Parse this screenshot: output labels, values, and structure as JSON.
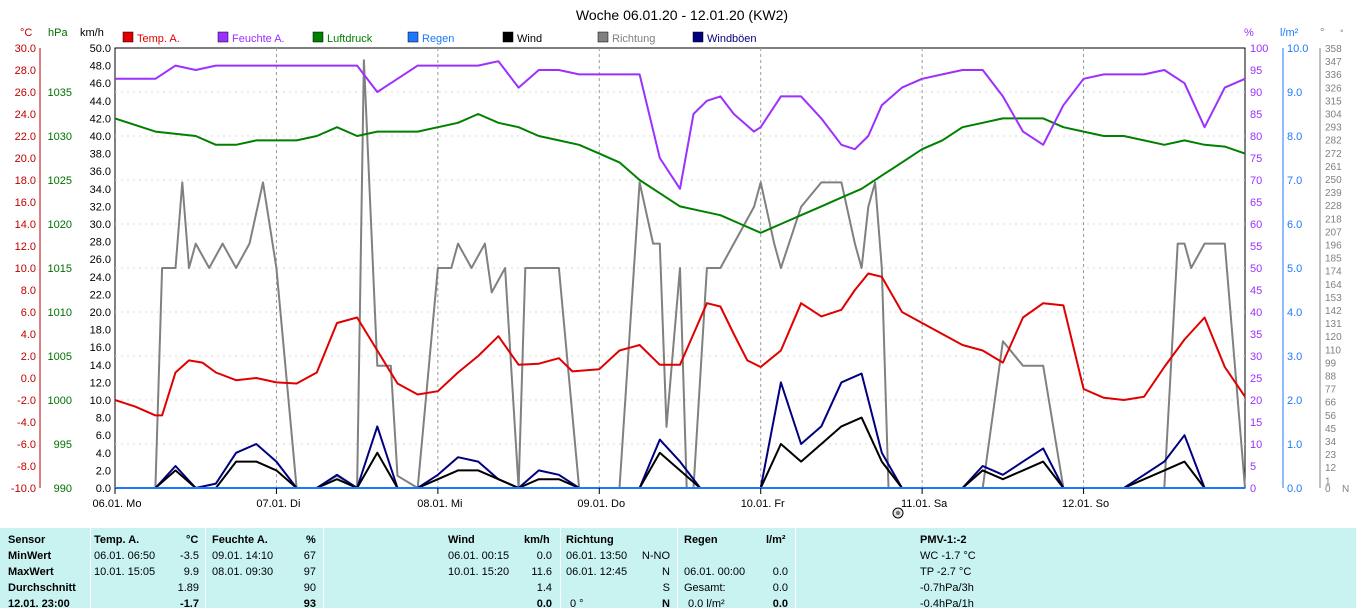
{
  "title": "Woche 06.01.20 - 12.01.20 (KW2)",
  "axes": {
    "temp_unit": "°C",
    "hpa_unit": "hPa",
    "kmh_unit": "km/h",
    "pct_unit": "%",
    "rain_unit": "l/m²",
    "dir_unit": "°",
    "temp_ticks": [
      "30.0",
      "28.0",
      "26.0",
      "24.0",
      "22.0",
      "20.0",
      "18.0",
      "16.0",
      "14.0",
      "12.0",
      "10.0",
      "8.0",
      "6.0",
      "4.0",
      "2.0",
      "0.0",
      "-2.0",
      "-4.0",
      "-6.0",
      "-8.0",
      "-10.0"
    ],
    "hpa_ticks": [
      "1035",
      "1030",
      "1025",
      "1020",
      "1015",
      "1010",
      "1005",
      "1000",
      "995",
      "990"
    ],
    "kmh_ticks": [
      "50.0",
      "48.0",
      "46.0",
      "44.0",
      "42.0",
      "40.0",
      "38.0",
      "36.0",
      "34.0",
      "32.0",
      "30.0",
      "28.0",
      "26.0",
      "24.0",
      "22.0",
      "20.0",
      "18.0",
      "16.0",
      "14.0",
      "12.0",
      "10.0",
      "8.0",
      "6.0",
      "4.0",
      "2.0",
      "0.0"
    ],
    "pct_ticks": [
      "100",
      "95",
      "90",
      "85",
      "80",
      "75",
      "70",
      "65",
      "60",
      "55",
      "50",
      "45",
      "40",
      "35",
      "30",
      "25",
      "20",
      "15",
      "10",
      "5",
      "0"
    ],
    "rain_ticks": [
      "10.0",
      "9.0",
      "8.0",
      "7.0",
      "6.0",
      "5.0",
      "4.0",
      "3.0",
      "2.0",
      "1.0",
      "0.0"
    ],
    "dir_ticks": [
      "358",
      "347",
      "336",
      "326",
      "315",
      "304",
      "293",
      "282",
      "272",
      "261",
      "250",
      "239",
      "228",
      "218",
      "207",
      "196",
      "185",
      "174",
      "164",
      "153",
      "142",
      "131",
      "120",
      "110",
      "99",
      "88",
      "77",
      "66",
      "56",
      "45",
      "34",
      "23",
      "12",
      "1"
    ],
    "dir_bottom": [
      "0",
      "N"
    ],
    "day_labels": [
      "06.01. Mo",
      "07.01. Di",
      "08.01. Mi",
      "09.01. Do",
      "10.01. Fr",
      "11.01. Sa",
      "12.01. So"
    ]
  },
  "legend": [
    {
      "label": "Temp. A.",
      "color": "#e00000"
    },
    {
      "label": "Feuchte A.",
      "color": "#9b30ff"
    },
    {
      "label": "Luftdruck",
      "color": "#008000"
    },
    {
      "label": "Regen",
      "color": "#1e78ff"
    },
    {
      "label": "Wind",
      "color": "#000000"
    },
    {
      "label": "Richtung",
      "color": "#808080"
    },
    {
      "label": "Windböen",
      "color": "#000080"
    }
  ],
  "chart_data": {
    "type": "line",
    "title": "Woche 06.01.20 - 12.01.20 (KW2)",
    "x_unit": "hours since 06.01. 00:00",
    "xlim": [
      0,
      168
    ],
    "series": [
      {
        "name": "Temp. A.",
        "unit": "°C",
        "ylim": [
          -10,
          30
        ],
        "color": "#e00000",
        "x": [
          0,
          3,
          6,
          7,
          9,
          11,
          13,
          15,
          18,
          21,
          24,
          27,
          30,
          33,
          36,
          39,
          42,
          45,
          48,
          51,
          54,
          57,
          60,
          63,
          66,
          68,
          72,
          75,
          78,
          81,
          84,
          86,
          88,
          90,
          92,
          94,
          96,
          99,
          102,
          105,
          108,
          110,
          112,
          114,
          117,
          120,
          123,
          126,
          129,
          132,
          135,
          138,
          141,
          144,
          147,
          150,
          153,
          156,
          159,
          162,
          165,
          168
        ],
        "values": [
          -2.0,
          -2.6,
          -3.4,
          -3.4,
          0.5,
          1.6,
          1.4,
          0.5,
          -0.2,
          0.0,
          -0.4,
          -0.5,
          0.5,
          5.0,
          5.5,
          2.5,
          -0.5,
          -1.5,
          -1.2,
          0.5,
          2.0,
          3.8,
          1.2,
          1.3,
          1.8,
          0.6,
          0.8,
          2.5,
          3.0,
          1.2,
          1.2,
          4.0,
          6.8,
          6.5,
          4.0,
          1.6,
          1.0,
          2.5,
          6.8,
          5.6,
          6.2,
          8.0,
          9.5,
          9.2,
          6.0,
          5.0,
          4.0,
          3.0,
          2.5,
          1.4,
          5.5,
          6.8,
          6.6,
          -1.0,
          -1.8,
          -2.0,
          -1.7,
          1.0,
          3.5,
          5.5,
          1.0,
          -1.7
        ]
      },
      {
        "name": "Feuchte A.",
        "unit": "%",
        "ylim": [
          0,
          100
        ],
        "color": "#9b30ff",
        "x": [
          0,
          3,
          6,
          9,
          12,
          15,
          18,
          21,
          24,
          27,
          30,
          33,
          36,
          39,
          42,
          45,
          48,
          51,
          54,
          57,
          60,
          63,
          66,
          69,
          72,
          75,
          78,
          81,
          84,
          86,
          88,
          90,
          92,
          95,
          96,
          99,
          102,
          105,
          108,
          110,
          112,
          114,
          117,
          120,
          123,
          126,
          129,
          132,
          135,
          138,
          141,
          144,
          147,
          150,
          153,
          156,
          159,
          162,
          165,
          168
        ],
        "values": [
          93,
          93,
          93,
          96,
          95,
          96,
          96,
          96,
          96,
          96,
          96,
          96,
          96,
          90,
          93,
          96,
          96,
          96,
          96,
          97,
          91,
          95,
          95,
          94,
          94,
          94,
          94,
          75,
          68,
          85,
          88,
          89,
          85,
          81,
          82,
          89,
          89,
          84,
          78,
          77,
          80,
          87,
          91,
          93,
          94,
          95,
          95,
          89,
          81,
          78,
          87,
          93,
          94,
          94,
          94,
          95,
          92,
          82,
          91,
          93
        ]
      },
      {
        "name": "Luftdruck",
        "unit": "hPa",
        "ylim": [
          990,
          1040
        ],
        "color": "#008000",
        "x": [
          0,
          6,
          12,
          15,
          18,
          21,
          24,
          27,
          30,
          33,
          36,
          39,
          42,
          45,
          48,
          51,
          54,
          57,
          60,
          63,
          66,
          69,
          72,
          75,
          78,
          81,
          84,
          87,
          90,
          93,
          96,
          99,
          102,
          105,
          108,
          111,
          114,
          117,
          120,
          123,
          126,
          129,
          132,
          135,
          138,
          141,
          144,
          147,
          150,
          153,
          156,
          159,
          162,
          165,
          168
        ],
        "values": [
          1032,
          1030.5,
          1030,
          1029,
          1029,
          1029.5,
          1029.5,
          1029.5,
          1030,
          1031,
          1030,
          1030.5,
          1030.5,
          1030.5,
          1031,
          1031.5,
          1032.5,
          1031.5,
          1031,
          1030,
          1029.5,
          1029,
          1028,
          1027,
          1025,
          1023.5,
          1022,
          1021.5,
          1021,
          1020,
          1019,
          1020,
          1021,
          1022,
          1023,
          1024,
          1025.5,
          1027,
          1028.5,
          1029.5,
          1031,
          1031.5,
          1032,
          1032,
          1032,
          1031,
          1030.5,
          1030,
          1030,
          1029.5,
          1029,
          1029.5,
          1029,
          1028.8,
          1028
        ]
      },
      {
        "name": "Wind",
        "unit": "km/h",
        "ylim": [
          0,
          50
        ],
        "color": "#000000",
        "x": [
          0,
          3,
          6,
          9,
          12,
          15,
          18,
          21,
          24,
          27,
          30,
          33,
          36,
          39,
          42,
          45,
          48,
          51,
          54,
          57,
          60,
          63,
          66,
          69,
          72,
          75,
          78,
          81,
          84,
          87,
          90,
          93,
          96,
          99,
          102,
          105,
          108,
          111,
          114,
          117,
          120,
          123,
          126,
          129,
          132,
          135,
          138,
          141,
          144,
          147,
          150,
          153,
          156,
          159,
          162,
          165,
          168
        ],
        "values": [
          0,
          0,
          0,
          2,
          0,
          0,
          3,
          3,
          2,
          0,
          0,
          1,
          0,
          4,
          0,
          0,
          1,
          2,
          2,
          1,
          0,
          1,
          1,
          0,
          0,
          0,
          0,
          4,
          2,
          0,
          0,
          0,
          0,
          5,
          3,
          5,
          7,
          8,
          3,
          0,
          0,
          0,
          0,
          2,
          1,
          2,
          3,
          0,
          0,
          0,
          0,
          1,
          2,
          3,
          0,
          0,
          0
        ]
      },
      {
        "name": "Windböen",
        "unit": "km/h",
        "ylim": [
          0,
          50
        ],
        "color": "#000080",
        "x": [
          0,
          3,
          6,
          9,
          12,
          15,
          18,
          21,
          24,
          27,
          30,
          33,
          36,
          39,
          42,
          45,
          48,
          51,
          54,
          57,
          60,
          63,
          66,
          69,
          72,
          75,
          78,
          81,
          84,
          87,
          90,
          93,
          96,
          99,
          102,
          105,
          108,
          111,
          114,
          117,
          120,
          123,
          126,
          129,
          132,
          135,
          138,
          141,
          144,
          147,
          150,
          153,
          156,
          159,
          162,
          165,
          168
        ],
        "values": [
          0,
          0,
          0,
          2.5,
          0,
          0.5,
          4,
          5,
          3,
          0,
          0,
          1.5,
          0,
          7,
          0,
          0,
          1.5,
          3.5,
          3,
          1,
          0,
          2,
          1.5,
          0,
          0,
          0,
          0,
          5.5,
          3,
          0,
          0,
          0,
          0,
          12,
          5,
          7,
          12,
          13,
          4,
          0,
          0,
          0,
          0,
          2.5,
          1.5,
          3,
          4.5,
          0,
          0,
          0,
          0,
          1.5,
          3,
          6,
          0,
          0,
          0
        ]
      },
      {
        "name": "Richtung",
        "unit": "°",
        "ylim": [
          0,
          360
        ],
        "color": "#808080",
        "x": [
          0,
          6,
          7,
          9,
          10,
          11,
          12,
          14,
          16,
          18,
          20,
          22,
          24,
          27,
          30,
          33,
          36,
          37,
          39,
          41,
          42,
          45,
          48,
          50,
          51,
          53,
          55,
          56,
          58,
          60,
          61,
          63,
          66,
          69,
          72,
          75,
          78,
          80,
          81,
          82,
          84,
          85,
          86,
          88,
          90,
          92,
          95,
          96,
          98,
          99,
          102,
          105,
          108,
          110,
          111,
          112,
          113,
          114,
          115,
          117,
          120,
          123,
          126,
          129,
          132,
          135,
          138,
          141,
          144,
          147,
          150,
          153,
          156,
          158,
          159,
          160,
          162,
          165,
          168
        ],
        "values": [
          0,
          0,
          180,
          180,
          250,
          180,
          200,
          180,
          200,
          180,
          200,
          250,
          180,
          0,
          0,
          10,
          0,
          350,
          100,
          100,
          10,
          0,
          180,
          180,
          200,
          180,
          200,
          160,
          180,
          0,
          180,
          180,
          180,
          0,
          0,
          0,
          250,
          200,
          200,
          50,
          180,
          0,
          0,
          180,
          180,
          200,
          230,
          250,
          200,
          180,
          230,
          250,
          250,
          200,
          180,
          230,
          250,
          180,
          0,
          0,
          0,
          0,
          0,
          0,
          120,
          100,
          100,
          0,
          0,
          0,
          0,
          0,
          0,
          200,
          200,
          180,
          200,
          200,
          0
        ]
      },
      {
        "name": "Regen",
        "unit": "l/m²",
        "ylim": [
          0,
          10
        ],
        "color": "#1e78ff",
        "x": [
          0,
          168
        ],
        "values": [
          0,
          0
        ]
      }
    ]
  },
  "stats": {
    "sensor": {
      "header": "Sensor",
      "rows": [
        "MinWert",
        "MaxWert",
        "Durchschnitt",
        "12.01. 23:00"
      ]
    },
    "temp": {
      "header": "Temp. A.",
      "unit": "°C",
      "min_time": "06.01.  06:50",
      "min": "-3.5",
      "max_time": "10.01.  15:05",
      "max": "9.9",
      "avg": "1.89",
      "current": "-1.7"
    },
    "hum": {
      "header": "Feuchte A.",
      "unit": "%",
      "min_time": "09.01.  14:10",
      "min": "67",
      "max_time": "08.01.  09:30",
      "max": "97",
      "avg": "90",
      "current": "93"
    },
    "wind": {
      "header": "Wind",
      "unit": "km/h",
      "min_time": "06.01.  00:15",
      "min": "0.0",
      "max_time": "10.01.  15:20",
      "max": "11.6",
      "avg": "1.4",
      "current": "0.0"
    },
    "dir": {
      "header": "Richtung",
      "min_time": "06.01.  13:50",
      "min": "N-NO",
      "max_time": "06.01.  12:45",
      "max": "N",
      "avg": "S",
      "current_deg": "0 °",
      "current": "N"
    },
    "rain": {
      "header": "Regen",
      "unit": "l/m²",
      "r2_time": "06.01.  00:00",
      "r2": "0.0",
      "r3_label": "Gesamt:",
      "r3": "0.0",
      "r4": "0.0 l/m²",
      "r4v": "0.0"
    },
    "pmv": {
      "header": "PMV-1:-2",
      "l1": "WC -1.7 °C",
      "l2": "TP -2.7 °C",
      "l3": "-0.7hPa/3h",
      "l4": "-0.4hPa/1h"
    }
  }
}
